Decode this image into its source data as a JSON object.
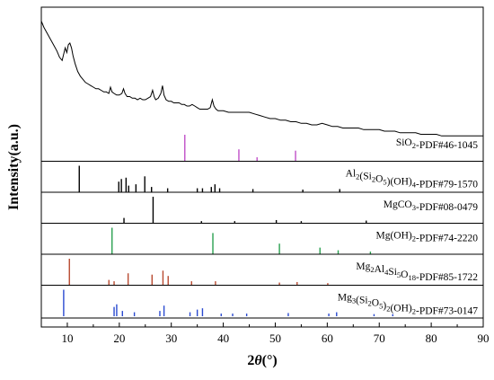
{
  "chart_data": {
    "type": "line",
    "xlabel_main": "2",
    "xlabel_theta": "θ",
    "xlabel_unit": "(°)",
    "ylabel": "Intensity(a.u.)",
    "xlim": [
      5,
      90
    ],
    "xticks": [
      10,
      20,
      30,
      40,
      50,
      60,
      70,
      80,
      90
    ],
    "grid": false,
    "measured": {
      "points": [
        [
          5,
          0.78
        ],
        [
          5.5,
          0.74
        ],
        [
          6,
          0.71
        ],
        [
          6.5,
          0.68
        ],
        [
          7,
          0.65
        ],
        [
          7.5,
          0.62
        ],
        [
          8,
          0.59
        ],
        [
          8.5,
          0.55
        ],
        [
          9,
          0.53
        ],
        [
          9.3,
          0.57
        ],
        [
          9.6,
          0.61
        ],
        [
          9.9,
          0.58
        ],
        [
          10.2,
          0.63
        ],
        [
          10.5,
          0.64
        ],
        [
          10.8,
          0.61
        ],
        [
          11.1,
          0.56
        ],
        [
          11.5,
          0.51
        ],
        [
          12,
          0.46
        ],
        [
          12.5,
          0.43
        ],
        [
          13,
          0.41
        ],
        [
          13.5,
          0.39
        ],
        [
          14,
          0.38
        ],
        [
          14.5,
          0.37
        ],
        [
          15,
          0.36
        ],
        [
          15.5,
          0.35
        ],
        [
          16,
          0.35
        ],
        [
          16.5,
          0.34
        ],
        [
          17,
          0.33
        ],
        [
          17.5,
          0.33
        ],
        [
          18,
          0.32
        ],
        [
          18.3,
          0.36
        ],
        [
          18.6,
          0.33
        ],
        [
          19,
          0.32
        ],
        [
          19.5,
          0.31
        ],
        [
          20,
          0.31
        ],
        [
          20.5,
          0.32
        ],
        [
          20.8,
          0.35
        ],
        [
          21.1,
          0.32
        ],
        [
          21.5,
          0.3
        ],
        [
          22,
          0.3
        ],
        [
          22.5,
          0.29
        ],
        [
          23,
          0.29
        ],
        [
          23.5,
          0.28
        ],
        [
          24,
          0.29
        ],
        [
          24.5,
          0.28
        ],
        [
          25,
          0.28
        ],
        [
          25.5,
          0.29
        ],
        [
          26,
          0.3
        ],
        [
          26.4,
          0.34
        ],
        [
          26.7,
          0.3
        ],
        [
          27,
          0.28
        ],
        [
          27.5,
          0.29
        ],
        [
          28,
          0.32
        ],
        [
          28.3,
          0.37
        ],
        [
          28.6,
          0.31
        ],
        [
          29,
          0.28
        ],
        [
          29.5,
          0.27
        ],
        [
          30,
          0.27
        ],
        [
          30.5,
          0.26
        ],
        [
          31,
          0.26
        ],
        [
          31.5,
          0.26
        ],
        [
          32,
          0.25
        ],
        [
          32.5,
          0.25
        ],
        [
          33,
          0.24
        ],
        [
          33.5,
          0.24
        ],
        [
          34,
          0.25
        ],
        [
          34.5,
          0.24
        ],
        [
          35,
          0.23
        ],
        [
          35.5,
          0.22
        ],
        [
          36,
          0.22
        ],
        [
          36.5,
          0.22
        ],
        [
          37,
          0.22
        ],
        [
          37.5,
          0.23
        ],
        [
          37.9,
          0.28
        ],
        [
          38.2,
          0.24
        ],
        [
          38.6,
          0.22
        ],
        [
          39,
          0.21
        ],
        [
          40,
          0.21
        ],
        [
          41,
          0.2
        ],
        [
          42,
          0.2
        ],
        [
          43,
          0.2
        ],
        [
          44,
          0.2
        ],
        [
          45,
          0.2
        ],
        [
          46,
          0.19
        ],
        [
          47,
          0.18
        ],
        [
          48,
          0.17
        ],
        [
          49,
          0.16
        ],
        [
          50,
          0.16
        ],
        [
          51,
          0.15
        ],
        [
          52,
          0.15
        ],
        [
          53,
          0.14
        ],
        [
          54,
          0.14
        ],
        [
          55,
          0.13
        ],
        [
          56,
          0.13
        ],
        [
          57,
          0.12
        ],
        [
          58,
          0.12
        ],
        [
          59,
          0.13
        ],
        [
          60,
          0.12
        ],
        [
          61,
          0.11
        ],
        [
          62,
          0.11
        ],
        [
          63,
          0.1
        ],
        [
          64,
          0.1
        ],
        [
          65,
          0.1
        ],
        [
          66,
          0.1
        ],
        [
          67,
          0.09
        ],
        [
          68,
          0.09
        ],
        [
          69,
          0.09
        ],
        [
          70,
          0.09
        ],
        [
          71,
          0.08
        ],
        [
          72,
          0.08
        ],
        [
          73,
          0.08
        ],
        [
          74,
          0.07
        ],
        [
          75,
          0.07
        ],
        [
          76,
          0.07
        ],
        [
          77,
          0.07
        ],
        [
          78,
          0.06
        ],
        [
          79,
          0.06
        ],
        [
          80,
          0.06
        ],
        [
          81,
          0.06
        ],
        [
          82,
          0.05
        ],
        [
          83,
          0.05
        ],
        [
          84,
          0.05
        ],
        [
          85,
          0.05
        ],
        [
          86,
          0.05
        ],
        [
          87,
          0.05
        ],
        [
          88,
          0.05
        ],
        [
          89,
          0.05
        ],
        [
          90,
          0.05
        ]
      ],
      "color": "#000000"
    },
    "references": [
      {
        "label_parts": [
          [
            "SiO",
            ""
          ],
          [
            "2",
            "sub"
          ],
          [
            "-PDF#46-1045",
            ""
          ]
        ],
        "color": "#c050c8",
        "peaks": [
          [
            32.6,
            1.0
          ],
          [
            43.0,
            0.45
          ],
          [
            46.5,
            0.15
          ],
          [
            53.9,
            0.4
          ]
        ]
      },
      {
        "label_parts": [
          [
            "Al",
            ""
          ],
          [
            "2",
            "sub"
          ],
          [
            "(Si",
            ""
          ],
          [
            "2",
            "sub"
          ],
          [
            "O",
            ""
          ],
          [
            "5",
            "sub"
          ],
          [
            ")(OH)",
            ""
          ],
          [
            "4",
            "sub"
          ],
          [
            "-PDF#79-1570",
            ""
          ]
        ],
        "color": "#000000",
        "peaks": [
          [
            12.3,
            1.0
          ],
          [
            19.9,
            0.4
          ],
          [
            20.4,
            0.5
          ],
          [
            21.3,
            0.55
          ],
          [
            21.8,
            0.25
          ],
          [
            23.2,
            0.3
          ],
          [
            24.9,
            0.6
          ],
          [
            26.2,
            0.2
          ],
          [
            29.3,
            0.15
          ],
          [
            35.0,
            0.15
          ],
          [
            36.0,
            0.15
          ],
          [
            37.7,
            0.2
          ],
          [
            38.4,
            0.3
          ],
          [
            39.3,
            0.15
          ],
          [
            45.7,
            0.12
          ],
          [
            55.3,
            0.1
          ],
          [
            62.4,
            0.12
          ]
        ]
      },
      {
        "label_parts": [
          [
            "MgCO",
            ""
          ],
          [
            "3",
            "sub"
          ],
          [
            "-PDF#08-0479",
            ""
          ]
        ],
        "color": "#000000",
        "peaks": [
          [
            20.9,
            0.2
          ],
          [
            26.5,
            1.0
          ],
          [
            35.8,
            0.08
          ],
          [
            42.2,
            0.08
          ],
          [
            50.2,
            0.12
          ],
          [
            55.0,
            0.08
          ],
          [
            67.5,
            0.1
          ]
        ]
      },
      {
        "label_parts": [
          [
            "Mg(OH)",
            ""
          ],
          [
            "2",
            "sub"
          ],
          [
            "-PDF#74-2220",
            ""
          ]
        ],
        "color": "#2aa050",
        "peaks": [
          [
            18.6,
            1.0
          ],
          [
            38.0,
            0.8
          ],
          [
            50.8,
            0.4
          ],
          [
            58.6,
            0.25
          ],
          [
            62.1,
            0.15
          ],
          [
            68.3,
            0.1
          ]
        ]
      },
      {
        "label_parts": [
          [
            "Mg",
            ""
          ],
          [
            "2",
            "sub"
          ],
          [
            "Al",
            ""
          ],
          [
            "4",
            "sub"
          ],
          [
            "Si",
            ""
          ],
          [
            "5",
            "sub"
          ],
          [
            "O",
            ""
          ],
          [
            "18",
            "sub"
          ],
          [
            "-PDF#85-1722",
            ""
          ]
        ],
        "color": "#b84a30",
        "peaks": [
          [
            10.4,
            1.0
          ],
          [
            18.0,
            0.2
          ],
          [
            19.0,
            0.15
          ],
          [
            21.7,
            0.45
          ],
          [
            26.3,
            0.4
          ],
          [
            28.4,
            0.55
          ],
          [
            29.4,
            0.35
          ],
          [
            33.9,
            0.15
          ],
          [
            38.5,
            0.15
          ],
          [
            50.8,
            0.1
          ],
          [
            54.2,
            0.12
          ],
          [
            60.1,
            0.08
          ]
        ]
      },
      {
        "label_parts": [
          [
            "Mg",
            ""
          ],
          [
            "3",
            "sub"
          ],
          [
            "(Si",
            ""
          ],
          [
            "2",
            "sub"
          ],
          [
            "O",
            ""
          ],
          [
            "5",
            "sub"
          ],
          [
            ")",
            ""
          ],
          [
            "2",
            "sub"
          ],
          [
            "(OH)",
            ""
          ],
          [
            "2",
            "sub"
          ],
          [
            "-PDF#73-0147",
            ""
          ]
        ],
        "color": "#2a4ad0",
        "peaks": [
          [
            9.3,
            1.0
          ],
          [
            19.0,
            0.35
          ],
          [
            19.5,
            0.45
          ],
          [
            20.6,
            0.2
          ],
          [
            22.9,
            0.15
          ],
          [
            27.8,
            0.2
          ],
          [
            28.6,
            0.4
          ],
          [
            33.6,
            0.15
          ],
          [
            35.0,
            0.25
          ],
          [
            36.0,
            0.3
          ],
          [
            39.6,
            0.1
          ],
          [
            41.8,
            0.1
          ],
          [
            44.5,
            0.1
          ],
          [
            52.5,
            0.12
          ],
          [
            60.3,
            0.1
          ],
          [
            61.8,
            0.15
          ],
          [
            69.0,
            0.08
          ],
          [
            72.6,
            0.08
          ]
        ]
      }
    ]
  }
}
